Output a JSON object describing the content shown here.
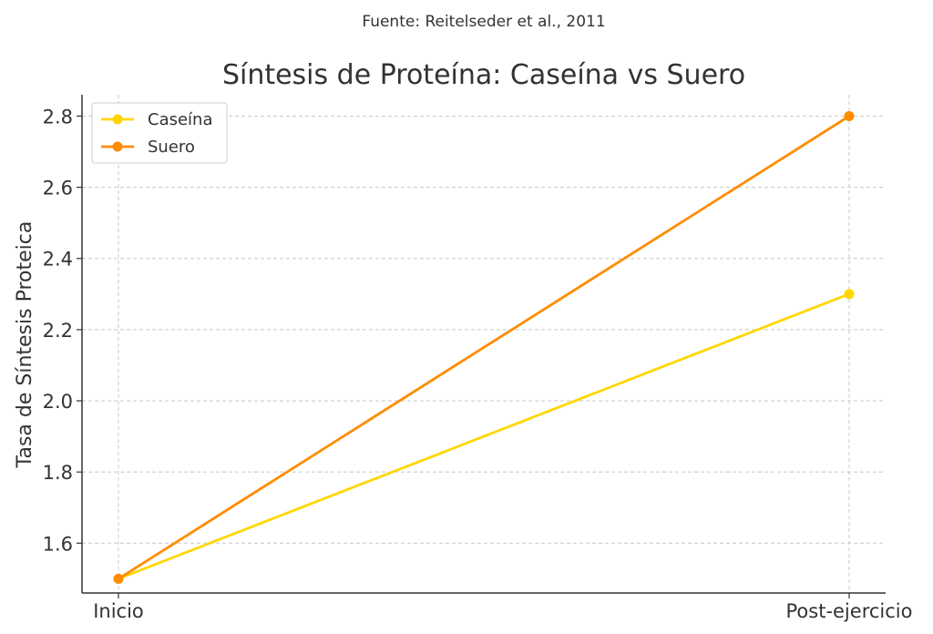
{
  "chart_data": {
    "type": "line",
    "source_note": "Fuente: Reitelseder et al., 2011",
    "title": "Síntesis de Proteína: Caseína vs Suero",
    "xlabel": "",
    "ylabel": "Tasa de Síntesis Proteica",
    "categories": [
      "Inicio",
      "Post-ejercicio"
    ],
    "ylim": [
      1.46,
      2.86
    ],
    "yticks": [
      "1.6",
      "1.8",
      "2.0",
      "2.2",
      "2.4",
      "2.6",
      "2.8"
    ],
    "grid": true,
    "legend_position": "top-left",
    "series": [
      {
        "name": "Caseína",
        "values": [
          1.5,
          2.3
        ],
        "color": "#FFD700"
      },
      {
        "name": "Suero",
        "values": [
          1.5,
          2.8
        ],
        "color": "#FF8C00"
      }
    ]
  }
}
